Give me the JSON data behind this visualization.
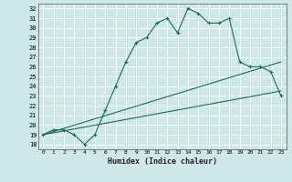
{
  "title": "",
  "xlabel": "Humidex (Indice chaleur)",
  "ylabel": "",
  "background_color": "#cce8e8",
  "grid_color": "#aad4d4",
  "line_color": "#1a6b5a",
  "xlim": [
    -0.5,
    23.5
  ],
  "ylim": [
    17.5,
    32.5
  ],
  "xticks": [
    0,
    1,
    2,
    3,
    4,
    5,
    6,
    7,
    8,
    9,
    10,
    11,
    12,
    13,
    14,
    15,
    16,
    17,
    18,
    19,
    20,
    21,
    22,
    23
  ],
  "yticks": [
    18,
    19,
    20,
    21,
    22,
    23,
    24,
    25,
    26,
    27,
    28,
    29,
    30,
    31,
    32
  ],
  "line1_x": [
    0,
    1,
    2,
    3,
    4,
    5,
    6,
    7,
    8,
    9,
    10,
    11,
    12,
    13,
    14,
    15,
    16,
    17,
    18,
    19,
    20,
    21,
    22,
    23
  ],
  "line1_y": [
    19.0,
    19.5,
    19.5,
    19.0,
    18.0,
    19.0,
    21.5,
    24.0,
    26.5,
    28.5,
    29.0,
    30.5,
    31.0,
    29.5,
    32.0,
    31.5,
    30.5,
    30.5,
    31.0,
    26.5,
    26.0,
    26.0,
    25.5,
    23.0
  ],
  "line2_x": [
    0,
    23
  ],
  "line2_y": [
    19.0,
    23.5
  ],
  "line3_x": [
    0,
    23
  ],
  "line3_y": [
    19.0,
    26.5
  ]
}
